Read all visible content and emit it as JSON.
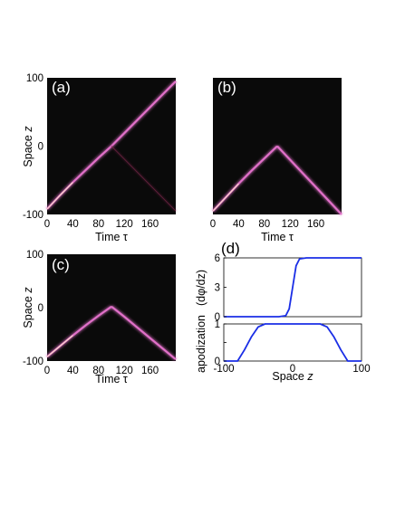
{
  "panels": [
    {
      "label": "(a)",
      "xlabel": "Time τ",
      "ylabel_prefix": "Space",
      "ylabel_var": "z",
      "xticks": [
        "0",
        "40",
        "80",
        "120",
        "160"
      ],
      "yticks": [
        "100",
        "0",
        "-100"
      ]
    },
    {
      "label": "(b)",
      "xlabel": "Time τ",
      "xticks": [
        "0",
        "40",
        "80",
        "120",
        "160"
      ],
      "yticks": []
    },
    {
      "label": "(c)",
      "xlabel": "Time τ",
      "ylabel_prefix": "Space",
      "ylabel_var": "z",
      "xticks": [
        "0",
        "40",
        "80",
        "120",
        "160"
      ],
      "yticks": [
        "100",
        "0",
        "-100"
      ]
    },
    {
      "label": "(d)"
    }
  ],
  "colors": {
    "heatmap_bg": "#0a0a0a",
    "trace": "#e070c8",
    "trace_hot": "#fff0c8",
    "line": "#1a2ee6"
  },
  "chart_data": [
    {
      "type": "heatmap",
      "panel": "(a)",
      "xlabel": "Time τ",
      "ylabel": "Space z",
      "xlim": [
        0,
        200
      ],
      "ylim": [
        -100,
        100
      ],
      "traces": [
        {
          "x": [
            0,
            20,
            40,
            60,
            80,
            100,
            120,
            140,
            160,
            180,
            200
          ],
          "y": [
            -92,
            -72,
            -53,
            -35,
            -17,
            0,
            19,
            38,
            57,
            76,
            95
          ]
        },
        {
          "x": [
            100,
            200
          ],
          "y": [
            0,
            -95
          ],
          "intensity": "faint"
        }
      ]
    },
    {
      "type": "heatmap",
      "panel": "(b)",
      "xlabel": "Time τ",
      "xlim": [
        0,
        200
      ],
      "ylim": [
        -100,
        100
      ],
      "traces": [
        {
          "x": [
            0,
            20,
            40,
            60,
            80,
            100
          ],
          "y": [
            -95,
            -75,
            -55,
            -36,
            -18,
            0
          ]
        },
        {
          "x": [
            100,
            120,
            140,
            160,
            180,
            200
          ],
          "y": [
            0,
            -20,
            -40,
            -60,
            -80,
            -100
          ]
        }
      ]
    },
    {
      "type": "heatmap",
      "panel": "(c)",
      "xlabel": "Time τ",
      "ylabel": "Space z",
      "xlim": [
        0,
        200
      ],
      "ylim": [
        -100,
        100
      ],
      "traces": [
        {
          "x": [
            0,
            20,
            40,
            60,
            80,
            100
          ],
          "y": [
            -92,
            -72,
            -52,
            -33,
            -15,
            2
          ]
        },
        {
          "x": [
            100,
            120,
            140,
            160,
            180,
            200
          ],
          "y": [
            2,
            -17,
            -37,
            -57,
            -77,
            -97
          ]
        }
      ]
    },
    {
      "type": "line",
      "panel": "(d) top",
      "xlabel": "",
      "ylabel": "(dφ/dz)",
      "xlim": [
        -100,
        100
      ],
      "ylim": [
        0,
        6
      ],
      "yticks": [
        "6",
        "3",
        "0"
      ],
      "x": [
        -100,
        -20,
        -10,
        -5,
        0,
        5,
        10,
        20,
        100
      ],
      "y": [
        0,
        0,
        0.1,
        0.8,
        3.0,
        5.2,
        5.9,
        6,
        6
      ]
    },
    {
      "type": "line",
      "panel": "(d) bottom",
      "xlabel": "Space z",
      "ylabel": "apodization",
      "xlim": [
        -100,
        100
      ],
      "ylim": [
        0,
        1
      ],
      "xticks": [
        "-100",
        "0",
        "100"
      ],
      "yticks": [
        "1",
        "0.5",
        "0"
      ],
      "x": [
        -100,
        -80,
        -70,
        -60,
        -50,
        -40,
        40,
        50,
        60,
        70,
        80,
        100
      ],
      "y": [
        0,
        0,
        0.3,
        0.65,
        0.92,
        1,
        1,
        0.92,
        0.65,
        0.3,
        0,
        0
      ]
    }
  ]
}
